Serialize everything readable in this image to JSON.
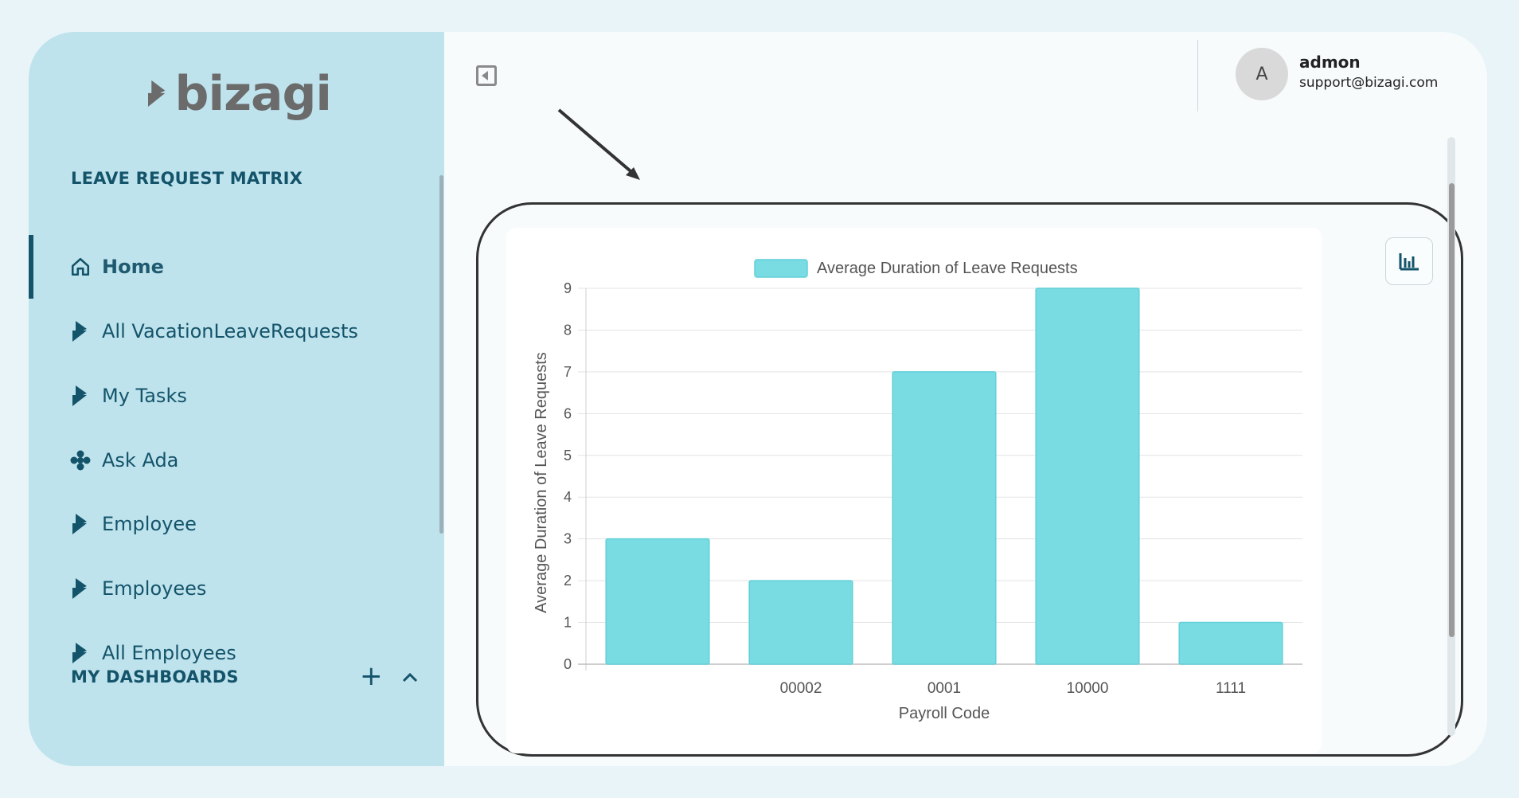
{
  "brand": {
    "logo_text": "bizagi"
  },
  "sidebar": {
    "section_title": "LEAVE REQUEST MATRIX",
    "items": [
      {
        "label": "Home",
        "icon": "home-icon"
      },
      {
        "label": "All VacationLeaveRequests",
        "icon": "bizagi-process-icon"
      },
      {
        "label": "My Tasks",
        "icon": "bizagi-process-icon"
      },
      {
        "label": "Ask Ada",
        "icon": "ada-asterisk-icon"
      },
      {
        "label": "Employee",
        "icon": "bizagi-process-icon"
      },
      {
        "label": "Employees",
        "icon": "bizagi-process-icon"
      },
      {
        "label": "All Employees",
        "icon": "bizagi-process-icon"
      }
    ],
    "dashboards_title": "MY DASHBOARDS",
    "add_label": "+",
    "collapse_label": "⌃"
  },
  "user": {
    "initial": "A",
    "name": "admon",
    "email": "support@bizagi.com"
  },
  "colors": {
    "sidebar_bg": "#bfe3ed",
    "accent": "#14546a",
    "bar": "#79dce3"
  },
  "chart_data": {
    "type": "bar",
    "categories": [
      "",
      "00002",
      "0001",
      "10000",
      "1111"
    ],
    "series": [
      {
        "name": "Average Duration of Leave Requests",
        "values": [
          3,
          2,
          7,
          9,
          1
        ]
      }
    ],
    "xlabel": "Payroll Code",
    "ylabel": "Average Duration of Leave Requests",
    "ylim": [
      0,
      9
    ],
    "yticks": [
      0,
      1,
      2,
      3,
      4,
      5,
      6,
      7,
      8,
      9
    ],
    "grid": true,
    "legend": "top-center"
  }
}
